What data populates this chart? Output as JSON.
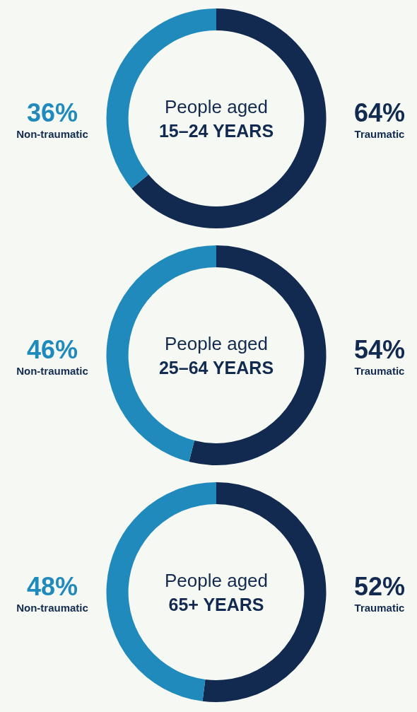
{
  "chart_data": [
    {
      "type": "donut",
      "title": "People aged",
      "subtitle": "15–24 YEARS",
      "categories": [
        "Traumatic",
        "Non-traumatic"
      ],
      "values": [
        64,
        36
      ],
      "colors": [
        "#122a4f",
        "#1f8abb"
      ],
      "value_labels": [
        "64%",
        "36%"
      ],
      "legend": false
    },
    {
      "type": "donut",
      "title": "People aged",
      "subtitle": "25–64 YEARS",
      "categories": [
        "Traumatic",
        "Non-traumatic"
      ],
      "values": [
        54,
        46
      ],
      "colors": [
        "#122a4f",
        "#1f8abb"
      ],
      "value_labels": [
        "54%",
        "46%"
      ],
      "legend": false
    },
    {
      "type": "donut",
      "title": "People aged",
      "subtitle": "65+ YEARS",
      "categories": [
        "Traumatic",
        "Non-traumatic"
      ],
      "values": [
        52,
        48
      ],
      "colors": [
        "#122a4f",
        "#1f8abb"
      ],
      "value_labels": [
        "52%",
        "48%"
      ],
      "legend": false
    }
  ]
}
